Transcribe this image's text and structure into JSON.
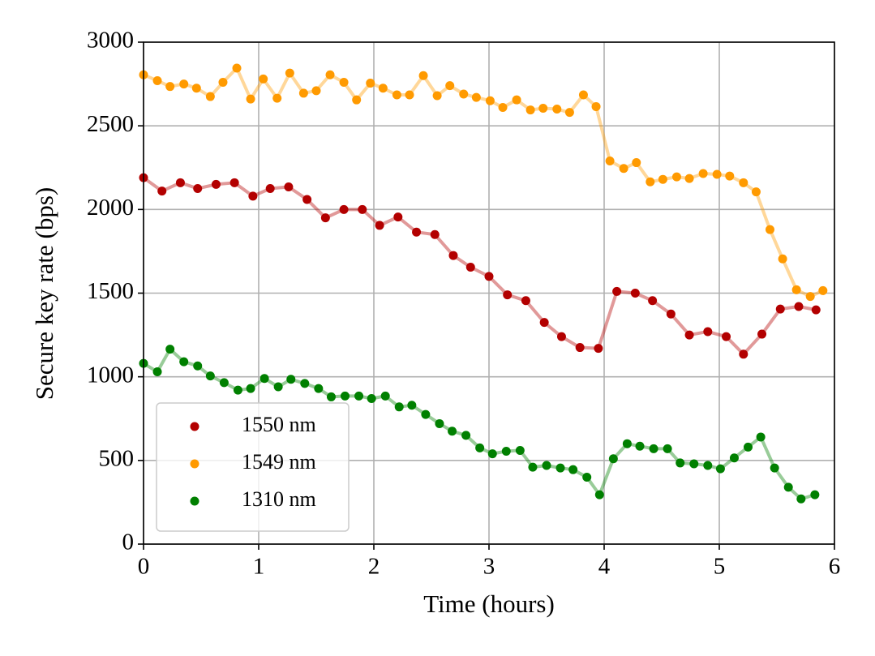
{
  "chart_data": {
    "type": "line",
    "xlabel": "Time (hours)",
    "ylabel": "Secure key rate (bps)",
    "xlim": [
      0,
      6
    ],
    "xticks": [
      0,
      1,
      2,
      3,
      4,
      5,
      6
    ],
    "ylim": [
      0,
      3000
    ],
    "yticks": [
      0,
      500,
      1000,
      1500,
      2000,
      2500,
      3000
    ],
    "grid": true,
    "legend": "lower left",
    "series": [
      {
        "name": "1550 nm",
        "color": "#b30000",
        "x": [
          0,
          0.16,
          0.32,
          0.47,
          0.63,
          0.79,
          0.95,
          1.1,
          1.26,
          1.42,
          1.58,
          1.74,
          1.9,
          2.05,
          2.21,
          2.37,
          2.53,
          2.69,
          2.84,
          3.0,
          3.16,
          3.32,
          3.48,
          3.63,
          3.79,
          3.95,
          4.11,
          4.27,
          4.42,
          4.58,
          4.74,
          4.9,
          5.06,
          5.21,
          5.37,
          5.53,
          5.69,
          5.84
        ],
        "values": [
          2190,
          2110,
          2160,
          2125,
          2150,
          2160,
          2080,
          2125,
          2135,
          2060,
          1950,
          2000,
          2000,
          1905,
          1955,
          1865,
          1850,
          1725,
          1655,
          1600,
          1490,
          1455,
          1325,
          1240,
          1175,
          1170,
          1510,
          1500,
          1455,
          1375,
          1250,
          1270,
          1240,
          1135,
          1255,
          1405,
          1420,
          1400
        ]
      },
      {
        "name": "1549 nm",
        "color": "#ff9a00",
        "x": [
          0,
          0.12,
          0.23,
          0.35,
          0.46,
          0.58,
          0.69,
          0.81,
          0.93,
          1.04,
          1.16,
          1.27,
          1.39,
          1.5,
          1.62,
          1.74,
          1.85,
          1.97,
          2.08,
          2.2,
          2.31,
          2.43,
          2.55,
          2.66,
          2.78,
          2.89,
          3.01,
          3.12,
          3.24,
          3.36,
          3.47,
          3.59,
          3.7,
          3.82,
          3.93,
          4.05,
          4.17,
          4.28,
          4.4,
          4.51,
          4.63,
          4.74,
          4.86,
          4.98,
          5.09,
          5.21,
          5.32,
          5.44,
          5.55,
          5.67,
          5.79,
          5.9
        ],
        "values": [
          2805,
          2770,
          2735,
          2750,
          2725,
          2675,
          2760,
          2845,
          2660,
          2780,
          2665,
          2815,
          2695,
          2710,
          2805,
          2760,
          2655,
          2755,
          2725,
          2685,
          2685,
          2800,
          2680,
          2740,
          2690,
          2670,
          2650,
          2610,
          2655,
          2595,
          2605,
          2600,
          2580,
          2685,
          2615,
          2290,
          2245,
          2280,
          2165,
          2180,
          2195,
          2185,
          2215,
          2210,
          2200,
          2160,
          2105,
          1880,
          1705,
          1520,
          1480,
          1515
        ]
      },
      {
        "name": "1310 nm",
        "color": "#008000",
        "x": [
          0,
          0.12,
          0.23,
          0.35,
          0.47,
          0.58,
          0.7,
          0.82,
          0.93,
          1.05,
          1.17,
          1.28,
          1.4,
          1.52,
          1.63,
          1.75,
          1.87,
          1.98,
          2.1,
          2.22,
          2.33,
          2.45,
          2.57,
          2.68,
          2.8,
          2.92,
          3.03,
          3.15,
          3.27,
          3.38,
          3.5,
          3.62,
          3.73,
          3.85,
          3.96,
          4.08,
          4.2,
          4.31,
          4.43,
          4.55,
          4.66,
          4.78,
          4.9,
          5.01,
          5.13,
          5.25,
          5.36,
          5.48,
          5.6,
          5.71,
          5.83
        ],
        "values": [
          1080,
          1030,
          1165,
          1090,
          1065,
          1005,
          965,
          920,
          930,
          990,
          940,
          985,
          960,
          930,
          880,
          885,
          885,
          870,
          885,
          820,
          830,
          775,
          720,
          675,
          650,
          575,
          540,
          555,
          560,
          460,
          470,
          455,
          445,
          400,
          295,
          510,
          600,
          585,
          570,
          570,
          485,
          480,
          470,
          450,
          515,
          580,
          640,
          455,
          340,
          270,
          295
        ]
      }
    ]
  }
}
